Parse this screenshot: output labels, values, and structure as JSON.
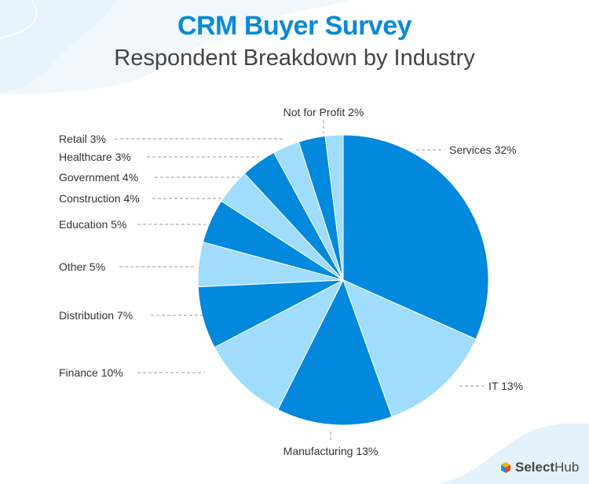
{
  "title": "CRM Buyer Survey",
  "subtitle": "Respondent Breakdown by Industry",
  "brand": "SelectHub",
  "colors": {
    "dark": "#0288dd",
    "light": "#a0dcfb",
    "title": "#0a8ad8"
  },
  "chart_data": {
    "type": "pie",
    "title": "CRM Buyer Survey",
    "subtitle": "Respondent Breakdown by Industry",
    "start": "12 o'clock, clockwise",
    "slices": [
      {
        "label": "Services",
        "value": 32,
        "text": "Services 32%"
      },
      {
        "label": "IT",
        "value": 13,
        "text": "IT 13%"
      },
      {
        "label": "Manufacturing",
        "value": 13,
        "text": "Manufacturing 13%"
      },
      {
        "label": "Finance",
        "value": 10,
        "text": "Finance 10%"
      },
      {
        "label": "Distribution",
        "value": 7,
        "text": "Distribution 7%"
      },
      {
        "label": "Other",
        "value": 5,
        "text": "Other 5%"
      },
      {
        "label": "Education",
        "value": 5,
        "text": "Education 5%"
      },
      {
        "label": "Construction",
        "value": 4,
        "text": "Construction 4%"
      },
      {
        "label": "Government",
        "value": 4,
        "text": "Government 4%"
      },
      {
        "label": "Healthcare",
        "value": 3,
        "text": "Healthcare 3%"
      },
      {
        "label": "Retail",
        "value": 3,
        "text": "Retail 3%"
      },
      {
        "label": "Not for Profit",
        "value": 2,
        "text": "Not for Profit 2%"
      }
    ]
  }
}
